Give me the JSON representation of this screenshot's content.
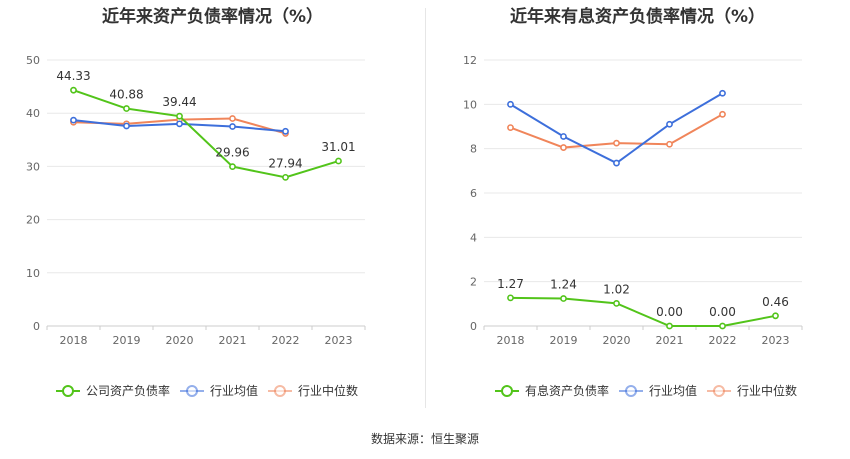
{
  "source": "数据来源：恒生聚源",
  "colors": {
    "green": "#52c41a",
    "blue": "#3d6fdb",
    "orange": "#f0855a"
  },
  "chart_data": [
    {
      "type": "line",
      "title": "近年来资产负债率情况（%）",
      "categories": [
        "2018",
        "2019",
        "2020",
        "2021",
        "2022",
        "2023"
      ],
      "ylim": [
        0,
        50
      ],
      "yticks": [
        0,
        10,
        20,
        30,
        40,
        50
      ],
      "grid": true,
      "legend_position": "bottom",
      "series": [
        {
          "name": "公司资产负债率",
          "color": "#52c41a",
          "values": [
            44.33,
            40.88,
            39.44,
            29.96,
            27.94,
            31.01
          ],
          "labels": [
            "44.33",
            "40.88",
            "39.44",
            "29.96",
            "27.94",
            "31.01"
          ]
        },
        {
          "name": "行业均值",
          "color": "#3d6fdb",
          "values": [
            38.7,
            37.6,
            38.0,
            37.5,
            36.6,
            null
          ]
        },
        {
          "name": "行业中位数",
          "color": "#f0855a",
          "values": [
            38.3,
            38.0,
            38.8,
            39.0,
            36.2,
            null
          ]
        }
      ]
    },
    {
      "type": "line",
      "title": "近年来有息资产负债率情况（%）",
      "categories": [
        "2018",
        "2019",
        "2020",
        "2021",
        "2022",
        "2023"
      ],
      "ylim": [
        0,
        12
      ],
      "yticks": [
        0,
        2,
        4,
        6,
        8,
        10,
        12
      ],
      "grid": true,
      "legend_position": "bottom",
      "series": [
        {
          "name": "有息资产负债率",
          "color": "#52c41a",
          "values": [
            1.27,
            1.24,
            1.02,
            0.0,
            0.0,
            0.46
          ],
          "labels": [
            "1.27",
            "1.24",
            "1.02",
            "0.00",
            "0.00",
            "0.46"
          ]
        },
        {
          "name": "行业均值",
          "color": "#3d6fdb",
          "values": [
            10.0,
            8.55,
            7.35,
            9.1,
            10.5,
            null
          ]
        },
        {
          "name": "行业中位数",
          "color": "#f0855a",
          "values": [
            8.95,
            8.05,
            8.25,
            8.2,
            9.55,
            null
          ]
        }
      ]
    }
  ]
}
